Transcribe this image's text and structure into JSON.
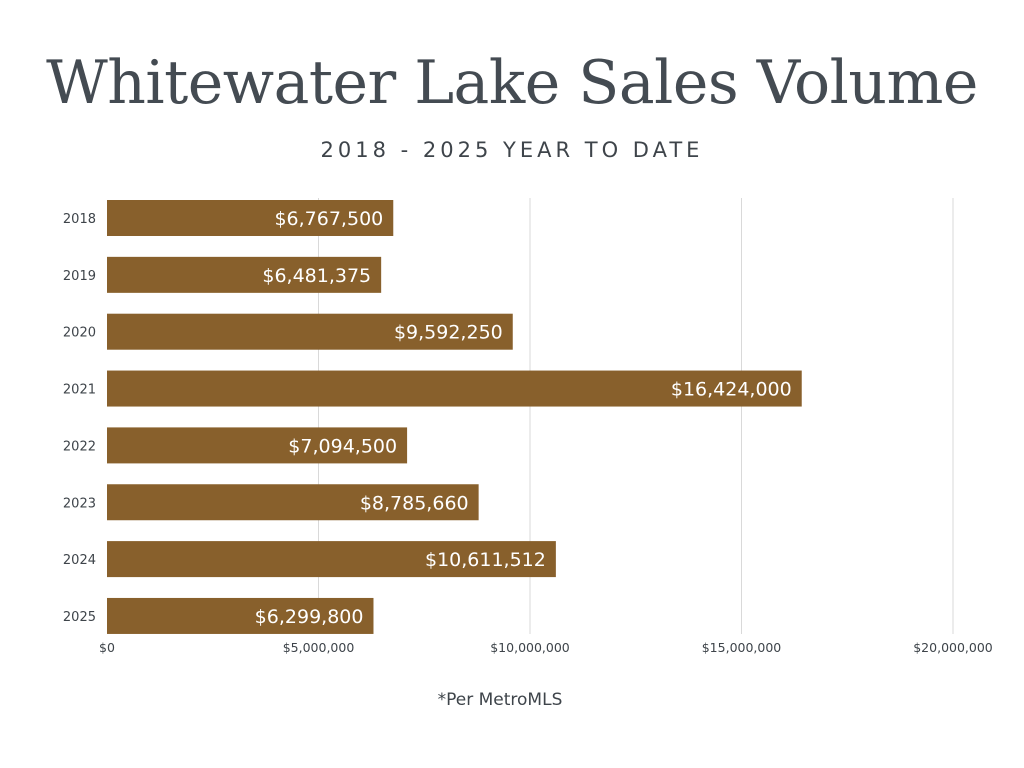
{
  "colors": {
    "bar": "#88602c",
    "bar_label": "#ffffff",
    "grid": "#d9d9d9",
    "title": "#444b52",
    "text": "#3e444a"
  },
  "chart_data": {
    "type": "bar",
    "orientation": "horizontal",
    "title": "Whitewater Lake Sales Volume",
    "subtitle": "2018 - 2025 YEAR TO DATE",
    "categories": [
      "2018",
      "2019",
      "2020",
      "2021",
      "2022",
      "2023",
      "2024",
      "2025"
    ],
    "values": [
      6767500,
      6481375,
      9592250,
      16424000,
      7094500,
      8785660,
      10611512,
      6299800
    ],
    "data_labels": [
      "$6,767,500",
      "$6,481,375",
      "$9,592,250",
      "$16,424,000",
      "$7,094,500",
      "$8,785,660",
      "$10,611,512",
      "$6,299,800"
    ],
    "xlim": [
      0,
      20000000
    ],
    "xticks": [
      0,
      5000000,
      10000000,
      15000000,
      20000000
    ],
    "xtick_labels": [
      "$0",
      "$5,000,000",
      "$10,000,000",
      "$15,000,000",
      "$20,000,000"
    ],
    "grid": true,
    "legend": "none"
  },
  "footnote": "*Per MetroMLS"
}
